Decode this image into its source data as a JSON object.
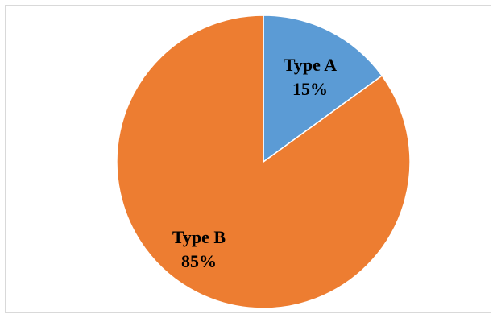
{
  "chart_data": {
    "type": "pie",
    "slices": [
      {
        "label": "Type A",
        "value": 15,
        "value_label": "15%",
        "color": "#5B9BD5"
      },
      {
        "label": "Type B",
        "value": 85,
        "value_label": "85%",
        "color": "#ED7D31"
      }
    ],
    "title": "",
    "legend": "none",
    "start_angle": "12 o'clock, clockwise"
  }
}
